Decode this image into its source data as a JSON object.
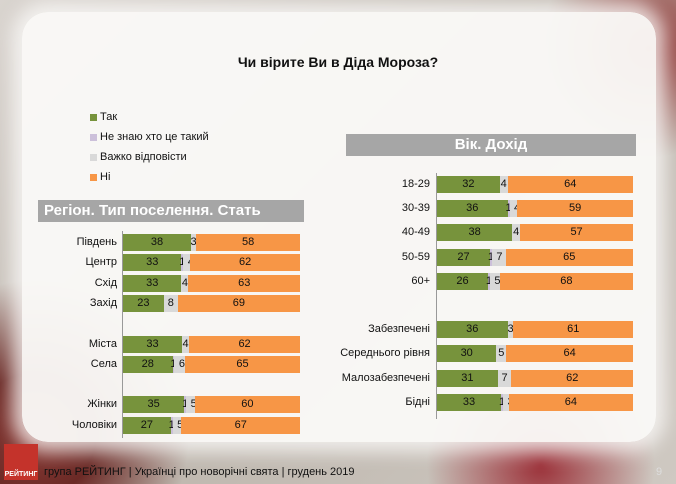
{
  "chart_data": {
    "title": "Чи вірите Ви в Діда Мороза?",
    "type": "bar",
    "stacked": true,
    "orientation": "horizontal",
    "legend": [
      "Так",
      "Не знаю хто це такий",
      "Важко відповісти",
      "Ні"
    ],
    "colors": [
      "#77933c",
      "#ccc0da",
      "#d9d9d9",
      "#f79646"
    ],
    "panels": [
      {
        "heading": "Регіон. Тип поселення. Стать",
        "rows": [
          {
            "label": "Південь",
            "values": [
              38,
              0,
              3,
              58
            ]
          },
          {
            "label": "Центр",
            "values": [
              33,
              1,
              4,
              62
            ]
          },
          {
            "label": "Схід",
            "values": [
              33,
              0,
              4,
              63
            ]
          },
          {
            "label": "Захід",
            "values": [
              23,
              0,
              8,
              69
            ]
          },
          null,
          {
            "label": "Міста",
            "values": [
              33,
              0,
              4,
              62
            ]
          },
          {
            "label": "Села",
            "values": [
              28,
              1,
              6,
              65
            ]
          },
          null,
          {
            "label": "Жінки",
            "values": [
              35,
              1,
              5,
              60
            ]
          },
          {
            "label": "Чоловіки",
            "values": [
              27,
              1,
              5,
              67
            ]
          }
        ]
      },
      {
        "heading": "Вік. Дохід",
        "rows": [
          {
            "label": "18-29",
            "values": [
              32,
              0,
              4,
              64
            ]
          },
          {
            "label": "30-39",
            "values": [
              36,
              1,
              4,
              59
            ]
          },
          {
            "label": "40-49",
            "values": [
              38,
              0,
              4,
              57
            ]
          },
          {
            "label": "50-59",
            "values": [
              27,
              1,
              7,
              65
            ]
          },
          {
            "label": "60+",
            "values": [
              26,
              1,
              5,
              68
            ]
          },
          null,
          {
            "label": "Забезпечені",
            "values": [
              36,
              0,
              3,
              61
            ]
          },
          {
            "label": "Середнього рівня",
            "values": [
              30,
              0,
              5,
              64
            ]
          },
          {
            "label": "Малозабезпечені",
            "values": [
              31,
              0,
              7,
              62
            ]
          },
          {
            "label": "Бідні",
            "values": [
              33,
              1,
              3,
              64
            ]
          }
        ]
      }
    ]
  },
  "footer": {
    "logo": "РЕЙТИНГ",
    "text": "група РЕЙТИНГ  |  Українці про новорічні свята |  грудень  2019",
    "page": "9"
  }
}
